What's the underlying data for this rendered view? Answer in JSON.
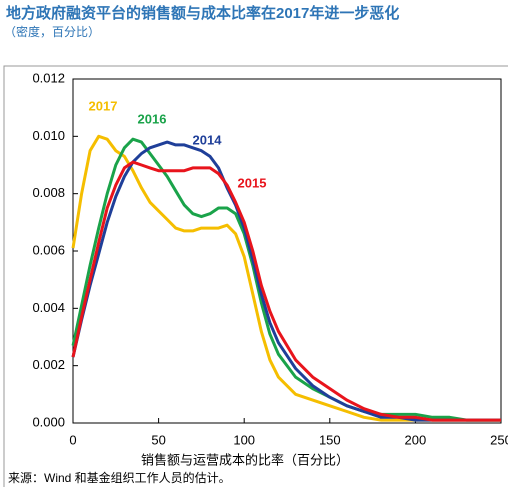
{
  "chart_data": {
    "type": "line",
    "title": "地方政府融资平台的销售额与成本比率在2017年进一步恶化",
    "subtitle": "（密度，百分比）",
    "x_label": "销售额与运营成本的比率（百分比）",
    "source": "来源：Wind 和基金组织工作人员的估计。",
    "x": [
      0,
      5,
      10,
      15,
      20,
      25,
      30,
      35,
      40,
      45,
      50,
      55,
      60,
      65,
      70,
      75,
      80,
      85,
      90,
      95,
      100,
      105,
      110,
      115,
      120,
      130,
      140,
      150,
      160,
      170,
      180,
      190,
      200,
      210,
      220,
      230,
      240,
      250
    ],
    "series": [
      {
        "name": "2017",
        "color": "#f5be00",
        "values": [
          0.0061,
          0.008,
          0.0095,
          0.01,
          0.0099,
          0.0095,
          0.0093,
          0.0088,
          0.0082,
          0.0077,
          0.0074,
          0.0071,
          0.0068,
          0.0067,
          0.0067,
          0.0068,
          0.0068,
          0.0068,
          0.0069,
          0.0066,
          0.0058,
          0.0045,
          0.0032,
          0.0022,
          0.0016,
          0.001,
          0.0008,
          0.0006,
          0.0004,
          0.0002,
          0.0001,
          0.0001,
          0.0001,
          0.0001,
          0.0001,
          0.0001,
          0.0001,
          0.0001
        ]
      },
      {
        "name": "2016",
        "color": "#1aa34a",
        "values": [
          0.0027,
          0.0041,
          0.0055,
          0.0068,
          0.008,
          0.009,
          0.0096,
          0.0099,
          0.0098,
          0.0094,
          0.009,
          0.0086,
          0.0081,
          0.0076,
          0.0073,
          0.0072,
          0.0073,
          0.0075,
          0.0075,
          0.0073,
          0.0066,
          0.0055,
          0.0042,
          0.0031,
          0.0024,
          0.0016,
          0.0012,
          0.0009,
          0.0006,
          0.0004,
          0.0003,
          0.0003,
          0.0003,
          0.0002,
          0.0002,
          0.0001,
          0.0001,
          0.0001
        ]
      },
      {
        "name": "2014",
        "color": "#1f3f99",
        "values": [
          0.0023,
          0.0036,
          0.0048,
          0.0059,
          0.007,
          0.0079,
          0.0086,
          0.0091,
          0.0094,
          0.0096,
          0.0097,
          0.0098,
          0.0097,
          0.0097,
          0.0096,
          0.0095,
          0.0093,
          0.0089,
          0.0082,
          0.0076,
          0.0068,
          0.0057,
          0.0045,
          0.0035,
          0.0028,
          0.0019,
          0.0013,
          0.0009,
          0.0006,
          0.0004,
          0.0002,
          0.0002,
          0.0001,
          0.0001,
          0.0001,
          0.0001,
          0.0001,
          0.0001
        ]
      },
      {
        "name": "2015",
        "color": "#e8141c",
        "values": [
          0.0023,
          0.0037,
          0.005,
          0.0063,
          0.0075,
          0.0083,
          0.0089,
          0.0091,
          0.009,
          0.0089,
          0.0088,
          0.0088,
          0.0088,
          0.0088,
          0.0089,
          0.0089,
          0.0089,
          0.0087,
          0.0083,
          0.0077,
          0.007,
          0.006,
          0.0048,
          0.0039,
          0.0032,
          0.0022,
          0.0016,
          0.0012,
          0.0008,
          0.0005,
          0.0003,
          0.0002,
          0.0002,
          0.0001,
          0.0001,
          0.0001,
          0.0001,
          0.0001
        ]
      }
    ],
    "xlim": [
      0,
      250
    ],
    "xticks": [
      0,
      50,
      100,
      150,
      200,
      250
    ],
    "ylim": [
      0,
      0.012
    ],
    "yticks": [
      {
        "value": 0,
        "label": "0.000"
      },
      {
        "value": 0.002,
        "label": "0.002"
      },
      {
        "value": 0.004,
        "label": "0.004"
      },
      {
        "value": 0.006,
        "label": "0.006"
      },
      {
        "value": 0.008,
        "label": "0.008"
      },
      {
        "value": 0.01,
        "label": "0.010"
      },
      {
        "value": 0.012,
        "label": "0.012"
      }
    ]
  }
}
